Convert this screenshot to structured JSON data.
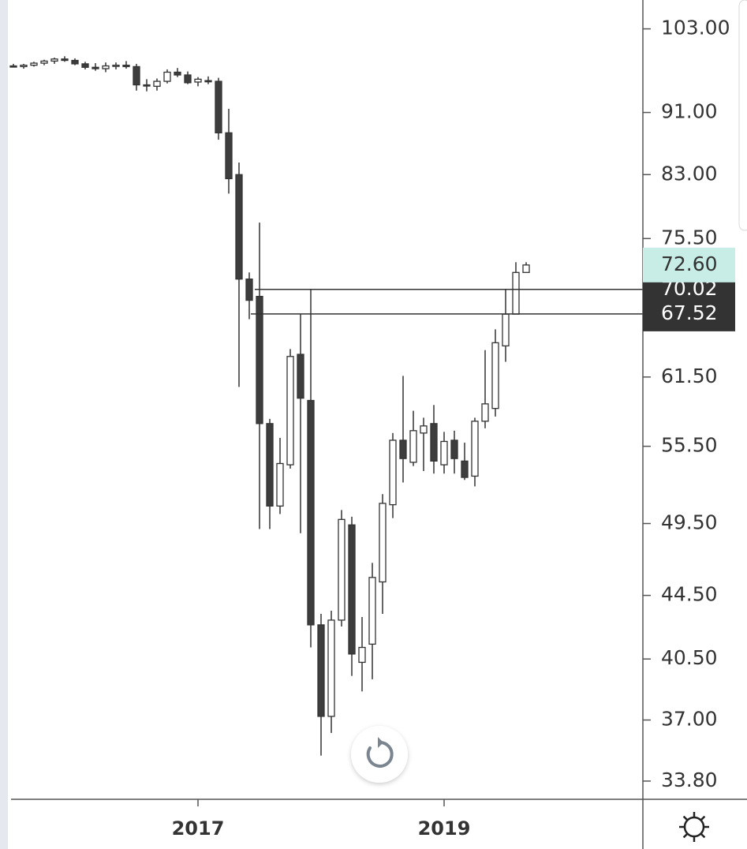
{
  "chart_data": {
    "type": "candlestick",
    "log_scale": true,
    "up_color": "#ffffff",
    "down_color": "#3d3d3d",
    "outline_color": "#333333",
    "categories": [
      null,
      null,
      null,
      null,
      null,
      null,
      null,
      null,
      null,
      null,
      null,
      null,
      null,
      null,
      null,
      null,
      null,
      null,
      "2017",
      null,
      null,
      null,
      null,
      null,
      null,
      null,
      null,
      null,
      null,
      null,
      null,
      null,
      null,
      null,
      null,
      null,
      null,
      null,
      null,
      null,
      null,
      null,
      "2019",
      null,
      null,
      null,
      null,
      null,
      null,
      null,
      null
    ],
    "open": [
      97.5,
      97.4,
      97.6,
      97.9,
      98.2,
      98.5,
      98.3,
      97.8,
      97.3,
      97.1,
      97.5,
      97.6,
      97.4,
      94.8,
      94.6,
      95.3,
      96.6,
      96.2,
      95.2,
      95.4,
      95.3,
      88.3,
      83.0,
      71.1,
      69.3,
      57.4,
      50.8,
      54.0,
      63.6,
      59.4,
      42.6,
      37.2,
      42.9,
      49.4,
      40.3,
      41.4,
      45.4,
      50.9,
      56.0,
      54.2,
      56.6,
      57.4,
      54.0,
      56.0,
      54.3,
      53.1,
      57.6,
      58.7,
      64.4,
      67.5,
      71.8
    ],
    "high": [
      97.8,
      97.8,
      98.1,
      98.4,
      98.7,
      98.9,
      98.6,
      98.1,
      97.9,
      98.0,
      98.0,
      98.2,
      97.8,
      95.6,
      95.7,
      97.0,
      97.2,
      96.7,
      95.9,
      96.0,
      95.8,
      91.5,
      84.5,
      71.8,
      77.3,
      57.8,
      56.2,
      64.1,
      67.5,
      70.0,
      43.3,
      43.5,
      50.5,
      50.0,
      43.1,
      46.7,
      51.7,
      56.6,
      61.6,
      58.5,
      57.9,
      59.0,
      56.7,
      56.8,
      55.8,
      57.9,
      64.0,
      66.0,
      70.0,
      72.9,
      72.9
    ],
    "low": [
      97.3,
      97.1,
      97.4,
      97.6,
      97.8,
      98.1,
      97.6,
      97.0,
      96.8,
      96.6,
      97.0,
      97.1,
      94.0,
      93.9,
      94.0,
      95.0,
      95.9,
      94.9,
      94.6,
      94.9,
      87.4,
      80.7,
      60.6,
      67.0,
      49.1,
      49.1,
      50.2,
      53.7,
      48.8,
      41.2,
      35.1,
      36.3,
      42.5,
      39.5,
      38.6,
      39.3,
      43.3,
      49.9,
      52.6,
      53.9,
      53.5,
      53.3,
      53.3,
      53.3,
      52.8,
      52.3,
      57.0,
      58.0,
      62.9,
      67.5,
      71.8
    ],
    "close": [
      97.4,
      97.6,
      97.9,
      98.2,
      98.5,
      98.3,
      97.8,
      97.3,
      97.1,
      97.5,
      97.6,
      97.4,
      94.8,
      94.7,
      95.3,
      96.6,
      96.2,
      95.1,
      95.6,
      95.3,
      88.3,
      82.5,
      71.1,
      68.9,
      57.4,
      50.8,
      54.1,
      63.4,
      59.6,
      42.6,
      37.2,
      42.9,
      49.8,
      40.8,
      41.2,
      45.7,
      51.0,
      56.0,
      54.5,
      56.8,
      57.2,
      54.3,
      55.9,
      54.5,
      53.0,
      57.6,
      59.1,
      64.7,
      67.5,
      71.8,
      72.6
    ],
    "ylim": [
      32.9,
      107.5
    ],
    "yticks": [
      {
        "value": 103,
        "label": "103.00"
      },
      {
        "value": 91,
        "label": "91.00"
      },
      {
        "value": 83,
        "label": "83.00"
      },
      {
        "value": 75.5,
        "label": "75.50"
      },
      {
        "value": 61.5,
        "label": "61.50"
      },
      {
        "value": 55.5,
        "label": "55.50"
      },
      {
        "value": 49.5,
        "label": "49.50"
      },
      {
        "value": 44.5,
        "label": "44.50"
      },
      {
        "value": 40.5,
        "label": "40.50"
      },
      {
        "value": 37,
        "label": "37.00"
      },
      {
        "value": 33.8,
        "label": "33.80"
      }
    ],
    "current_price": {
      "value": 72.6,
      "label": "72.60",
      "color": "#c8ede6"
    },
    "levels": [
      {
        "value": 70.02,
        "label": "70.02"
      },
      {
        "value": 67.52,
        "label": "67.52"
      }
    ],
    "level_color": "#333333"
  }
}
